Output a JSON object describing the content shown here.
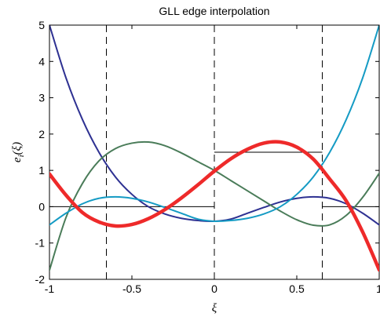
{
  "chart_data": {
    "type": "line",
    "title": "GLL edge interpolation",
    "xlabel": "ξ",
    "ylabel": "e_i(ξ)",
    "xlim": [
      -1,
      1
    ],
    "ylim": [
      -2,
      5
    ],
    "xticks": [
      "-1",
      "-0.5",
      "0",
      "0.5",
      "1"
    ],
    "yticks": [
      "-2",
      "-1",
      "0",
      "1",
      "2",
      "3",
      "4",
      "5"
    ],
    "grid": false,
    "legend": "none",
    "gll_nodes": [
      -1,
      -0.6547,
      0,
      0.6547,
      1
    ],
    "series": [
      {
        "color": "#2e3192",
        "line_width": "normal",
        "points": [
          [
            -1.0,
            5.0
          ],
          [
            -0.9,
            3.55
          ],
          [
            -0.8,
            2.4
          ],
          [
            -0.7,
            1.5
          ],
          [
            -0.6,
            0.82
          ],
          [
            -0.5,
            0.34
          ],
          [
            -0.4,
            0.0
          ],
          [
            -0.3,
            -0.2
          ],
          [
            -0.2,
            -0.32
          ],
          [
            -0.1,
            -0.38
          ],
          [
            0.0,
            -0.4
          ],
          [
            0.1,
            -0.34
          ],
          [
            0.2,
            -0.18
          ],
          [
            0.3,
            -0.02
          ],
          [
            0.4,
            0.13
          ],
          [
            0.5,
            0.23
          ],
          [
            0.6,
            0.27
          ],
          [
            0.7,
            0.23
          ],
          [
            0.8,
            0.08
          ],
          [
            0.9,
            -0.18
          ],
          [
            1.0,
            -0.5
          ]
        ]
      },
      {
        "color": "#4a7c59",
        "line_width": "normal",
        "points": [
          [
            -1.0,
            -1.75
          ],
          [
            -0.9,
            -0.3
          ],
          [
            -0.8,
            0.64
          ],
          [
            -0.7,
            1.26
          ],
          [
            -0.6,
            1.6
          ],
          [
            -0.5,
            1.75
          ],
          [
            -0.4,
            1.78
          ],
          [
            -0.3,
            1.68
          ],
          [
            -0.2,
            1.48
          ],
          [
            -0.1,
            1.24
          ],
          [
            0.0,
            1.0
          ],
          [
            0.1,
            0.72
          ],
          [
            0.2,
            0.44
          ],
          [
            0.3,
            0.16
          ],
          [
            0.4,
            -0.12
          ],
          [
            0.5,
            -0.36
          ],
          [
            0.6,
            -0.51
          ],
          [
            0.7,
            -0.5
          ],
          [
            0.8,
            -0.24
          ],
          [
            0.9,
            0.26
          ],
          [
            1.0,
            0.92
          ]
        ]
      },
      {
        "color": "#159bc4",
        "line_width": "normal",
        "points": [
          [
            -1.0,
            -0.5
          ],
          [
            -0.9,
            -0.18
          ],
          [
            -0.8,
            0.08
          ],
          [
            -0.7,
            0.23
          ],
          [
            -0.6,
            0.27
          ],
          [
            -0.5,
            0.23
          ],
          [
            -0.4,
            0.13
          ],
          [
            -0.3,
            -0.02
          ],
          [
            -0.2,
            -0.18
          ],
          [
            -0.1,
            -0.34
          ],
          [
            0.0,
            -0.4
          ],
          [
            0.1,
            -0.38
          ],
          [
            0.2,
            -0.32
          ],
          [
            0.3,
            -0.2
          ],
          [
            0.4,
            0.0
          ],
          [
            0.5,
            0.34
          ],
          [
            0.6,
            0.82
          ],
          [
            0.7,
            1.5
          ],
          [
            0.8,
            2.4
          ],
          [
            0.9,
            3.55
          ],
          [
            1.0,
            5.0
          ]
        ]
      },
      {
        "color": "#ee2a2a",
        "line_width": "thick",
        "points": [
          [
            -1.0,
            0.9
          ],
          [
            -0.9,
            0.32
          ],
          [
            -0.8,
            -0.16
          ],
          [
            -0.7,
            -0.42
          ],
          [
            -0.6,
            -0.53
          ],
          [
            -0.5,
            -0.49
          ],
          [
            -0.4,
            -0.33
          ],
          [
            -0.3,
            -0.08
          ],
          [
            -0.2,
            0.24
          ],
          [
            -0.1,
            0.6
          ],
          [
            0.0,
            0.98
          ],
          [
            0.1,
            1.32
          ],
          [
            0.2,
            1.58
          ],
          [
            0.3,
            1.75
          ],
          [
            0.4,
            1.78
          ],
          [
            0.5,
            1.64
          ],
          [
            0.6,
            1.31
          ],
          [
            0.7,
            0.76
          ],
          [
            0.8,
            0.16
          ],
          [
            0.9,
            -0.7
          ],
          [
            1.0,
            -1.74
          ]
        ]
      }
    ],
    "guides": {
      "line_color": "#000000",
      "segments": [
        {
          "y": 0,
          "x_from": -1,
          "x_to": 0
        },
        {
          "y": 1.5,
          "x_from": 0,
          "x_to": 0.6547
        },
        {
          "y": 0,
          "x_from": 0.6547,
          "x_to": 1
        }
      ]
    }
  }
}
